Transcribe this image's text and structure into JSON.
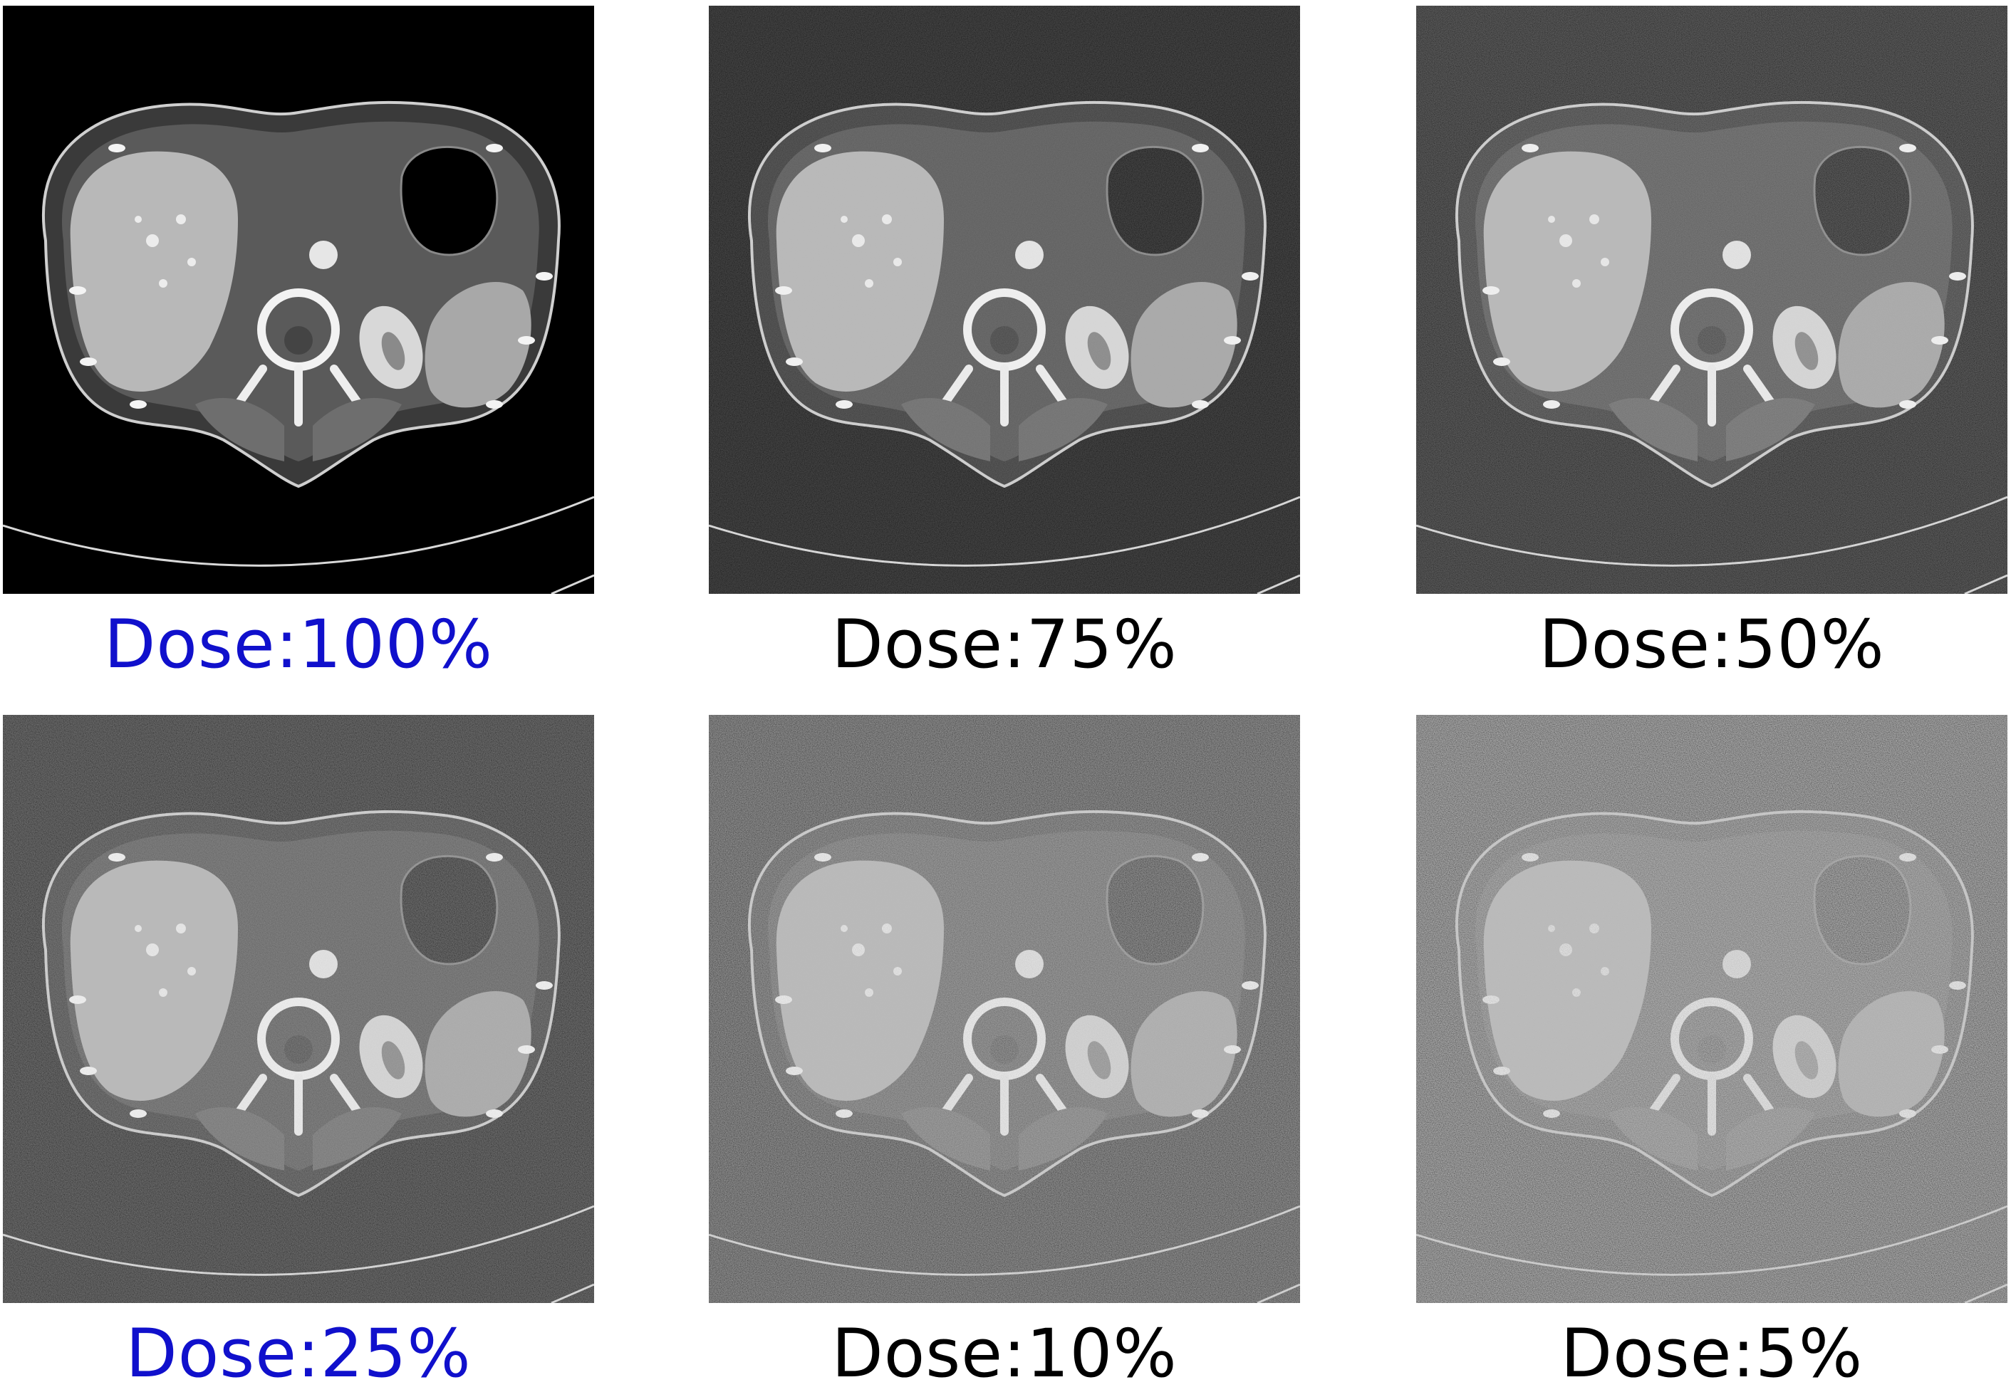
{
  "panels": [
    {
      "caption": "Dose:100%",
      "caption_color": "#1010cc",
      "noise": 0.0
    },
    {
      "caption": "Dose:75%",
      "caption_color": "#000000",
      "noise": 0.04
    },
    {
      "caption": "Dose:50%",
      "caption_color": "#000000",
      "noise": 0.07
    },
    {
      "caption": "Dose:25%",
      "caption_color": "#1010cc",
      "noise": 0.1
    },
    {
      "caption": "Dose:10%",
      "caption_color": "#000000",
      "noise": 0.18
    },
    {
      "caption": "Dose:5%",
      "caption_color": "#000000",
      "noise": 0.26
    }
  ]
}
